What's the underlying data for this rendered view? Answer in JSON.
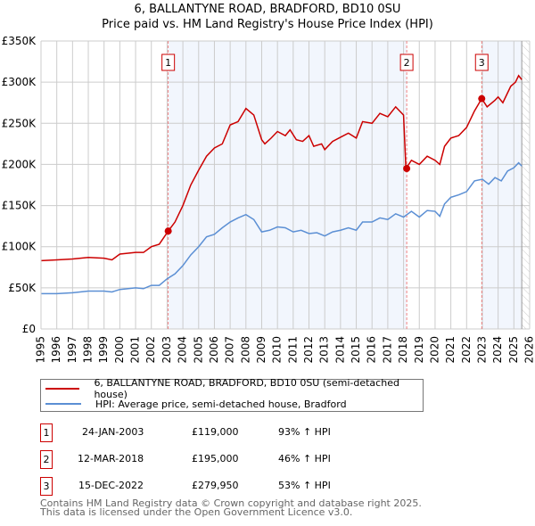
{
  "chart_data": {
    "type": "line",
    "title": "6, BALLANTYNE ROAD, BRADFORD, BD10 0SU",
    "subtitle": "Price paid vs. HM Land Registry's House Price Index (HPI)",
    "xlim": [
      1995,
      2026
    ],
    "ylim": [
      0,
      350000
    ],
    "x_ticks": [
      "1995",
      "1996",
      "1997",
      "1998",
      "1999",
      "2000",
      "2001",
      "2002",
      "2003",
      "2004",
      "2005",
      "2006",
      "2007",
      "2008",
      "2009",
      "2010",
      "2011",
      "2012",
      "2013",
      "2014",
      "2015",
      "2016",
      "2017",
      "2018",
      "2019",
      "2020",
      "2021",
      "2022",
      "2023",
      "2024",
      "2025",
      "2026"
    ],
    "y_ticks": [
      {
        "v": 0,
        "label": "£0"
      },
      {
        "v": 50000,
        "label": "£50K"
      },
      {
        "v": 100000,
        "label": "£100K"
      },
      {
        "v": 150000,
        "label": "£150K"
      },
      {
        "v": 200000,
        "label": "£200K"
      },
      {
        "v": 250000,
        "label": "£250K"
      },
      {
        "v": 300000,
        "label": "£300K"
      },
      {
        "v": 350000,
        "label": "£350K"
      }
    ],
    "grid": true,
    "shaded_periods": [
      [
        2003.07,
        2018.2
      ],
      [
        2022.96,
        2025.5
      ]
    ],
    "forecast_from": 2025.5,
    "series": [
      {
        "name": "6, BALLANTYNE ROAD, BRADFORD, BD10 0SU (semi-detached house)",
        "color": "#cc0000",
        "x": [
          1995,
          1996,
          1997,
          1998,
          1999,
          1999.5,
          2000,
          2001,
          2001.5,
          2002,
          2002.5,
          2003.07,
          2003.5,
          2004,
          2004.5,
          2005,
          2005.5,
          2006,
          2006.5,
          2007,
          2007.5,
          2008,
          2008.5,
          2009,
          2009.2,
          2009.6,
          2010,
          2010.5,
          2010.8,
          2011.2,
          2011.6,
          2012,
          2012.3,
          2012.8,
          2013,
          2013.5,
          2014,
          2014.5,
          2015,
          2015.4,
          2016,
          2016.5,
          2017,
          2017.5,
          2018.0,
          2018.15,
          2018.5,
          2019,
          2019.5,
          2020,
          2020.3,
          2020.6,
          2021,
          2021.5,
          2022,
          2022.5,
          2022.96,
          2023.3,
          2023.8,
          2024,
          2024.3,
          2024.8,
          2025.1,
          2025.3,
          2025.5
        ],
        "y": [
          83000,
          84000,
          85000,
          87000,
          86000,
          84000,
          91000,
          93000,
          93000,
          100000,
          103000,
          119000,
          130000,
          150000,
          175000,
          193000,
          210000,
          220000,
          225000,
          248000,
          252000,
          268000,
          260000,
          230000,
          225000,
          232000,
          240000,
          235000,
          242000,
          230000,
          228000,
          235000,
          222000,
          225000,
          218000,
          228000,
          233000,
          238000,
          232000,
          252000,
          250000,
          262000,
          258000,
          270000,
          260000,
          195000,
          205000,
          200000,
          210000,
          205000,
          200000,
          222000,
          232000,
          235000,
          245000,
          265000,
          279950,
          270000,
          278000,
          282000,
          275000,
          295000,
          300000,
          308000,
          303000
        ]
      },
      {
        "name": "HPI: Average price, semi-detached house, Bradford",
        "color": "#5b8fd4",
        "x": [
          1995,
          1996,
          1997,
          1998,
          1999,
          1999.5,
          2000,
          2001,
          2001.5,
          2002,
          2002.5,
          2003,
          2003.5,
          2004,
          2004.5,
          2005,
          2005.5,
          2006,
          2006.5,
          2007,
          2007.5,
          2008,
          2008.5,
          2009,
          2009.5,
          2010,
          2010.5,
          2011,
          2011.5,
          2012,
          2012.5,
          2013,
          2013.5,
          2014,
          2014.5,
          2015,
          2015.4,
          2016,
          2016.5,
          2017,
          2017.5,
          2018,
          2018.5,
          2019,
          2019.5,
          2020,
          2020.3,
          2020.6,
          2021,
          2021.5,
          2022,
          2022.5,
          2023,
          2023.4,
          2023.8,
          2024.2,
          2024.6,
          2025,
          2025.3,
          2025.5
        ],
        "y": [
          43000,
          43000,
          44000,
          46000,
          46000,
          45000,
          48000,
          50000,
          49000,
          53000,
          53000,
          61000,
          67000,
          77000,
          90000,
          100000,
          112000,
          115000,
          123000,
          130000,
          135000,
          139000,
          133000,
          118000,
          120000,
          124000,
          123000,
          118000,
          120000,
          116000,
          117000,
          113000,
          118000,
          120000,
          123000,
          120000,
          130000,
          130000,
          135000,
          133000,
          140000,
          136000,
          143000,
          136000,
          144000,
          143000,
          137000,
          152000,
          160000,
          163000,
          167000,
          180000,
          182000,
          176000,
          184000,
          180000,
          192000,
          196000,
          202000,
          198000
        ]
      }
    ],
    "sales": [
      {
        "id": "1",
        "x": 2003.07,
        "price": 119000,
        "date": "24-JAN-2003",
        "price_label": "£119,000",
        "hpi": "93% ↑ HPI"
      },
      {
        "id": "2",
        "x": 2018.2,
        "price": 195000,
        "date": "12-MAR-2018",
        "price_label": "£195,000",
        "hpi": "46% ↑ HPI"
      },
      {
        "id": "3",
        "x": 2022.96,
        "price": 279950,
        "date": "15-DEC-2022",
        "price_label": "£279,950",
        "hpi": "53% ↑ HPI"
      }
    ]
  },
  "footer": {
    "line1": "Contains HM Land Registry data © Crown copyright and database right 2025.",
    "line2": "This data is licensed under the Open Government Licence v3.0."
  }
}
